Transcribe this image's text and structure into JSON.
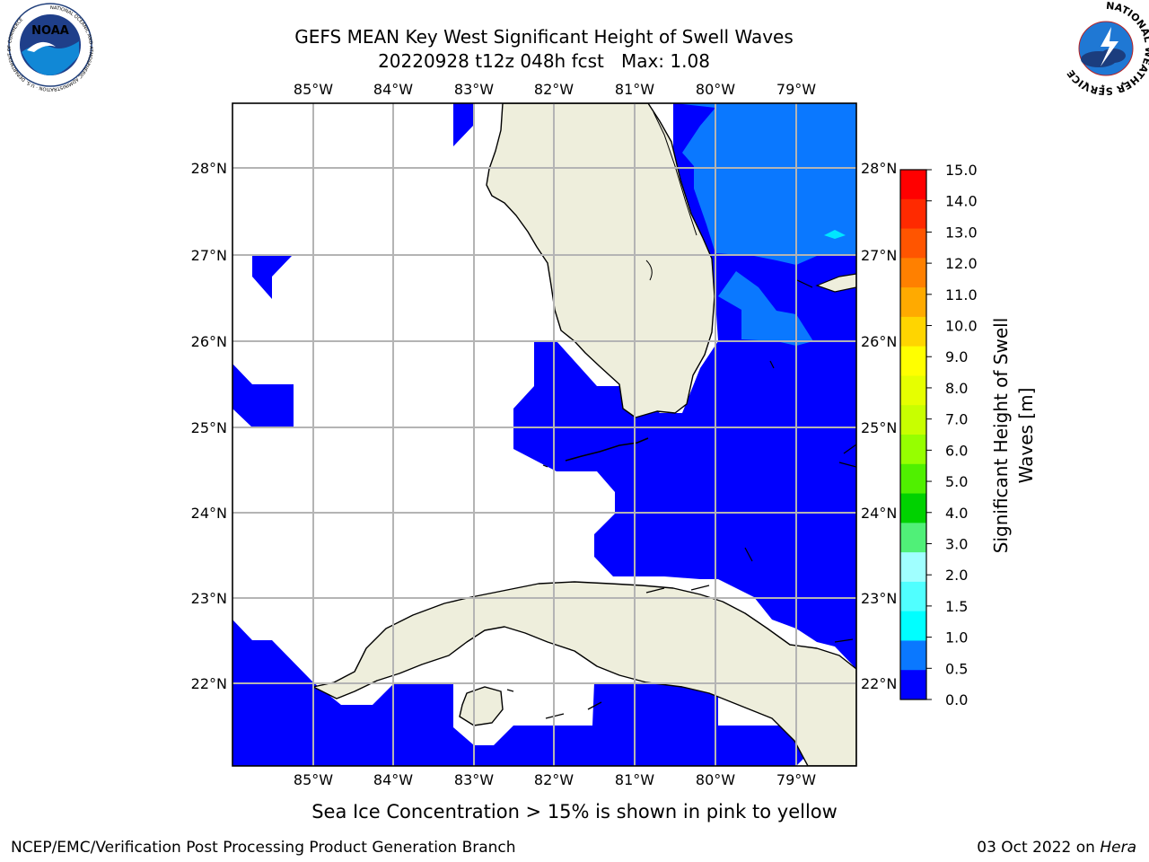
{
  "title": {
    "line1": "GEFS MEAN Key West Significant Height of Swell Waves",
    "line2": "20220928 t12z 048h fcst   Max: 1.08"
  },
  "logos": {
    "noaa": {
      "text": "NOAA",
      "ring_text": "NATIONAL OCEANIC AND ATMOSPHERIC ADMINISTRATION · U.S. DEPARTMENT OF COMMERCE"
    },
    "nws": {
      "ring_text": "NATIONAL WEATHER SERVICE"
    }
  },
  "map": {
    "lon_labels": [
      "85°W",
      "84°W",
      "83°W",
      "82°W",
      "81°W",
      "80°W",
      "79°W"
    ],
    "lat_labels": [
      "28°N",
      "27°N",
      "26°N",
      "25°N",
      "24°N",
      "23°N",
      "22°N"
    ],
    "colors": {
      "land": "#eeeedc",
      "ocean_blank": "#ffffff",
      "swell_0_0_5": "#0000ff",
      "swell_0_5_1_0": "#0a78ff",
      "swell_1_0_1_5": "#00e6ff",
      "grid": "#b4b4b4"
    }
  },
  "colorbar": {
    "label_line1": "Significant Height of Swell",
    "label_line2": "Waves [m]",
    "ticks": [
      "15.0",
      "14.0",
      "13.0",
      "12.0",
      "11.0",
      "10.0",
      "9.0",
      "8.0",
      "7.0",
      "6.0",
      "5.0",
      "4.0",
      "3.0",
      "2.0",
      "1.5",
      "1.0",
      "0.5",
      "0.0"
    ],
    "colors_top_to_bottom": [
      "#ff0000",
      "#ff2a00",
      "#ff5500",
      "#ff8000",
      "#ffaa00",
      "#ffd500",
      "#ffff00",
      "#e6ff00",
      "#c8ff00",
      "#96ff00",
      "#50f000",
      "#00d200",
      "#50f078",
      "#a0ffff",
      "#50ffff",
      "#00ffff",
      "#0a78ff",
      "#0000ff"
    ]
  },
  "note": "Sea Ice Concentration > 15% is shown in pink to yellow",
  "footer": {
    "left": "NCEP/EMC/Verification Post Processing Product Generation Branch",
    "right_prefix": "03 Oct 2022 on ",
    "right_italic": "Hera"
  }
}
